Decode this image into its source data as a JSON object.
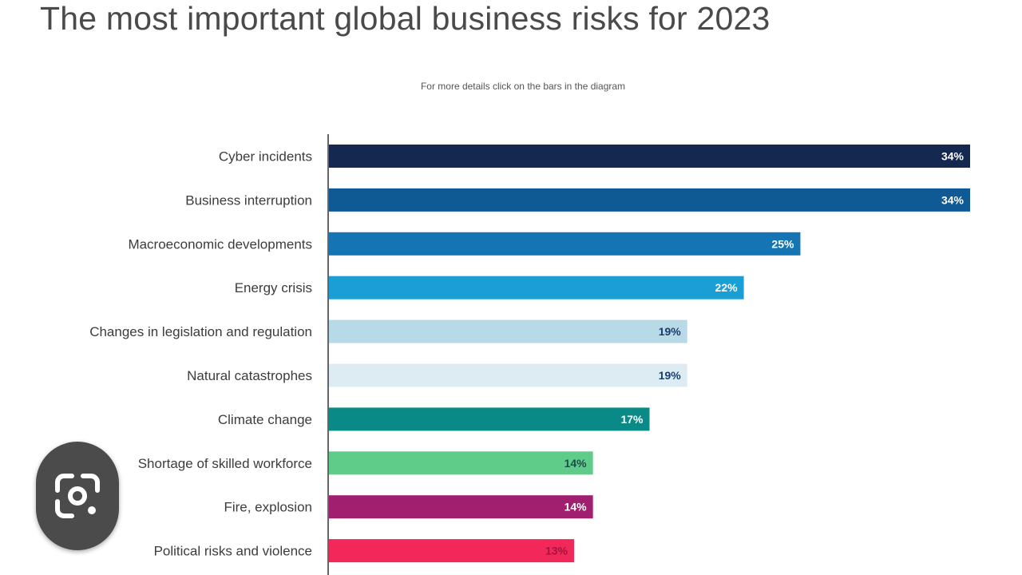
{
  "chart_data": {
    "type": "bar",
    "orientation": "horizontal",
    "title": "The most important global business risks for 2023",
    "subtitle": "For more details click on the bars in the diagram",
    "categories": [
      "Cyber incidents",
      "Business interruption",
      "Macroeconomic developments",
      "Energy crisis",
      "Changes in legislation and regulation",
      "Natural catastrophes",
      "Climate change",
      "Shortage of skilled workforce",
      "Fire, explosion",
      "Political risks and violence"
    ],
    "values": [
      34,
      34,
      25,
      22,
      19,
      19,
      17,
      14,
      14,
      13
    ],
    "value_labels": [
      "34%",
      "34%",
      "25%",
      "22%",
      "19%",
      "19%",
      "17%",
      "14%",
      "14%",
      "13%"
    ],
    "colors": [
      "#142850",
      "#0f5a94",
      "#1474b4",
      "#1a9ed4",
      "#b8d9e6",
      "#dcecf2",
      "#0a8a86",
      "#5fcc8a",
      "#a01f6e",
      "#f2275a"
    ],
    "label_colors": [
      "#ffffff",
      "#ffffff",
      "#ffffff",
      "#ffffff",
      "#1a3d6e",
      "#1a3d6e",
      "#ffffff",
      "#1e4d4a",
      "#ffffff",
      "#a0173e"
    ],
    "xlim": [
      0,
      34
    ],
    "grid": false,
    "legend": "none"
  },
  "overlay": {
    "lens_icon": "google-lens-icon"
  }
}
